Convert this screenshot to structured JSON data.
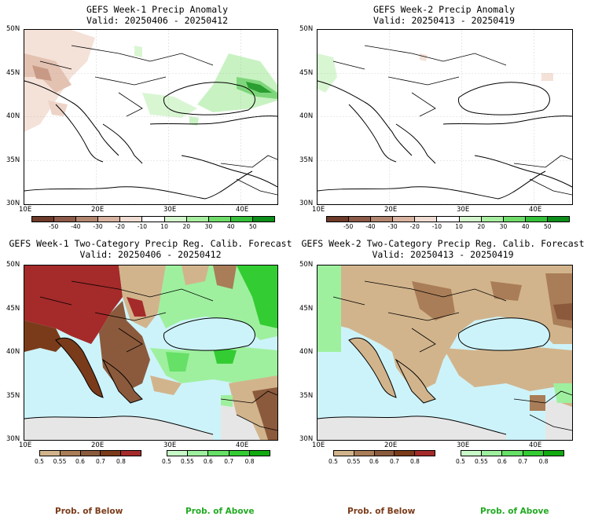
{
  "panels": {
    "tl": {
      "title1": "GEFS Week-1 Precip Anomaly",
      "title2": "Valid: 20250406 - 20250412"
    },
    "tr": {
      "title1": "GEFS Week-2 Precip Anomaly",
      "title2": "Valid: 20250413 - 20250419"
    },
    "bl": {
      "title1": "GEFS Week-1 Two-Category Precip Reg. Calib. Forecast",
      "title2": "Valid: 20250406 - 20250412"
    },
    "br": {
      "title1": "GEFS Week-2 Two-Category Precip Reg. Calib. Forecast",
      "title2": "Valid: 20250413 - 20250419"
    }
  },
  "axes": {
    "lat_labels": [
      "50N",
      "45N",
      "40N",
      "35N",
      "30N"
    ],
    "lon_labels": [
      "10E",
      "20E",
      "30E",
      "40E"
    ]
  },
  "anomaly_colorbar": {
    "labels": [
      "-50",
      "-40",
      "-30",
      "-20",
      "-10",
      "10",
      "20",
      "30",
      "40",
      "50"
    ],
    "colors": [
      "#6e3a2a",
      "#8d5a48",
      "#b3866f",
      "#d8b3a0",
      "#efdcd2",
      "#ffffff",
      "#d4f6cc",
      "#a8eea0",
      "#6fdc6a",
      "#36c03a",
      "#0d8e1a"
    ]
  },
  "below_colorbar": {
    "labels": [
      "0.5",
      "0.55",
      "0.6",
      "0.7",
      "0.8"
    ],
    "colors": [
      "#d2b48c",
      "#a97d57",
      "#8b5a3c",
      "#7a3b1a",
      "#a52a2a"
    ]
  },
  "above_colorbar": {
    "labels": [
      "0.5",
      "0.55",
      "0.6",
      "0.7",
      "0.8"
    ],
    "colors": [
      "#c8fac8",
      "#9ef09e",
      "#66e066",
      "#33cc33",
      "#11aa11"
    ]
  },
  "footer": {
    "below": "Prob. of Below",
    "above": "Prob. of Above",
    "below_color": "#7a3b1a",
    "above_color": "#22aa22"
  },
  "colors": {
    "sea": "#cdf3fa",
    "land_neutral": "#ffffff",
    "outside": "#e6e6e6"
  }
}
